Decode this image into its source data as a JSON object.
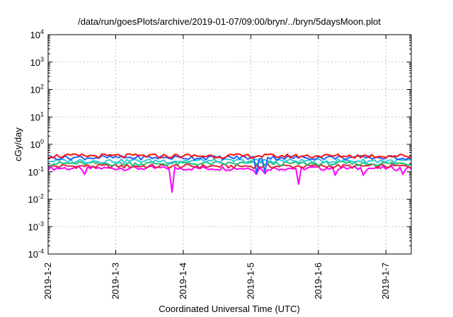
{
  "chart_data": {
    "type": "line",
    "title": "/data/run/goesPlots/archive/2019-01-07/09:00/bryn/../bryn/5daysMoon.plot",
    "xlabel": "Coordinated Universal Time (UTC)",
    "ylabel": "cGy/day",
    "yscale": "log",
    "ylim": [
      0.0001,
      10000
    ],
    "xlim": [
      "2019-01-02 00:00",
      "2019-01-07 09:00"
    ],
    "x_ticks": [
      "2019-1-2",
      "2019-1-3",
      "2019-1-4",
      "2019-1-5",
      "2019-1-6",
      "2019-1-7"
    ],
    "y_ticks": [
      {
        "base": "10",
        "exp": "-4"
      },
      {
        "base": "10",
        "exp": "-3"
      },
      {
        "base": "10",
        "exp": "-2"
      },
      {
        "base": "10",
        "exp": "-1"
      },
      {
        "base": "10",
        "exp": "0"
      },
      {
        "base": "10",
        "exp": "1"
      },
      {
        "base": "10",
        "exp": "2"
      },
      {
        "base": "10",
        "exp": "3"
      },
      {
        "base": "10",
        "exp": "4"
      }
    ],
    "grid": true,
    "legend": "none",
    "series": [
      {
        "color": "#ff00ff",
        "base": 0.135,
        "dips": [
          {
            "x": "2019-01-02 13:00",
            "v": 0.08
          },
          {
            "x": "2019-01-03 20:00",
            "v": 0.018
          },
          {
            "x": "2019-01-05 02:00",
            "v": 0.08
          },
          {
            "x": "2019-01-05 05:00",
            "v": 0.085
          },
          {
            "x": "2019-01-05 17:00",
            "v": 0.035
          },
          {
            "x": "2019-01-06 06:00",
            "v": 0.075
          },
          {
            "x": "2019-01-06 16:00",
            "v": 0.075
          },
          {
            "x": "2019-01-07 06:00",
            "v": 0.08
          }
        ]
      },
      {
        "color": "#e0203a",
        "base": 0.16,
        "dips": []
      },
      {
        "color": "#20c070",
        "base": 0.2,
        "dips": []
      },
      {
        "color": "#30c8d8",
        "base": 0.25,
        "dips": []
      },
      {
        "color": "#2060ff",
        "base": 0.33,
        "dips": [
          {
            "x": "2019-01-05 02:00",
            "v": 0.09
          },
          {
            "x": "2019-01-05 05:00",
            "v": 0.1
          }
        ]
      },
      {
        "color": "#ff1010",
        "base": 0.38,
        "dips": []
      }
    ]
  }
}
